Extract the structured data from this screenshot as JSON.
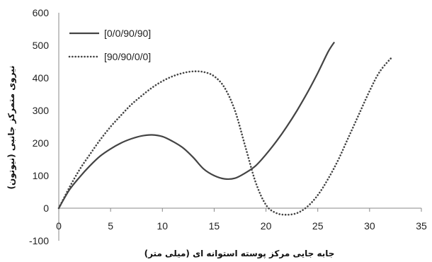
{
  "chart_data": {
    "type": "line",
    "xlabel": "جابه جایی مرکز پوسته استوانه ای (میلی متر)",
    "ylabel": "نیروی متمرکز جانبی (نیوتون)",
    "xlim": [
      0,
      35
    ],
    "ylim": [
      -100,
      600
    ],
    "xticks": [
      0,
      5,
      10,
      15,
      20,
      25,
      30,
      35
    ],
    "yticks": [
      -100,
      0,
      100,
      200,
      300,
      400,
      500,
      600
    ],
    "grid": false,
    "legend_position": "top-left",
    "series": [
      {
        "name": "[0/0/90/90]",
        "style": "solid",
        "color": "#444444",
        "x": [
          0,
          1,
          2,
          3,
          4,
          5,
          6,
          7,
          8,
          9,
          10,
          11,
          12,
          13,
          14,
          15,
          16,
          17,
          18,
          19,
          20,
          21,
          22,
          23,
          24,
          25,
          26,
          26.6
        ],
        "y": [
          0,
          55,
          95,
          130,
          160,
          182,
          200,
          213,
          222,
          225,
          220,
          205,
          185,
          155,
          120,
          100,
          90,
          92,
          108,
          130,
          165,
          205,
          250,
          300,
          355,
          415,
          480,
          510
        ]
      },
      {
        "name": "[90/90/0/0]",
        "style": "dotted",
        "color": "#444444",
        "x": [
          0,
          1,
          2,
          3,
          4,
          5,
          6,
          7,
          8,
          9,
          10,
          11,
          12,
          13,
          14,
          15,
          16,
          17,
          18,
          19,
          20,
          21,
          22,
          23,
          24,
          25,
          26,
          27,
          28,
          29,
          30,
          31,
          32.2
        ],
        "y": [
          0,
          62,
          118,
          165,
          210,
          250,
          285,
          318,
          345,
          370,
          390,
          405,
          415,
          420,
          418,
          405,
          370,
          300,
          190,
          80,
          10,
          -15,
          -20,
          -15,
          5,
          40,
          90,
          150,
          220,
          290,
          360,
          420,
          465
        ]
      }
    ]
  }
}
